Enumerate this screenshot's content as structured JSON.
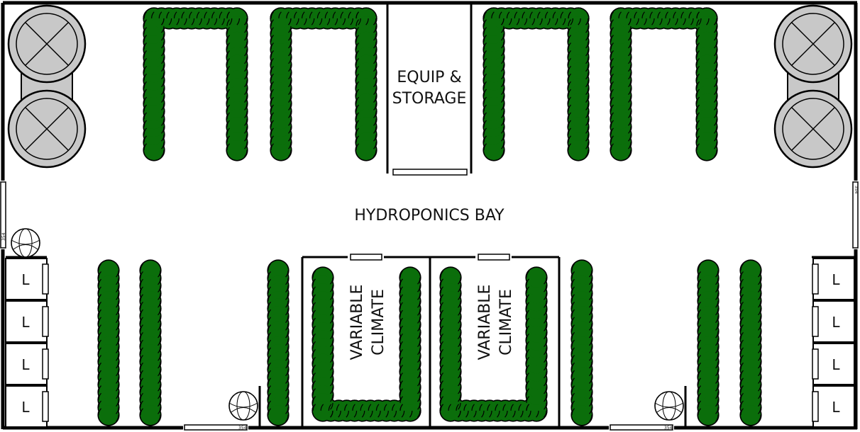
{
  "labels": {
    "bay": "HYDROPONICS BAY",
    "equip_line1": "EQUIP &",
    "equip_line2": "STORAGE",
    "climate_a_line1": "VARIABLE",
    "climate_a_line2": "CLIMATE",
    "climate_b_line1": "VARIABLE",
    "climate_b_line2": "CLIMATE",
    "door_code": "354",
    "locker": "L"
  },
  "colors": {
    "plant_fill": "#0b6e0b",
    "plant_outline": "#000000",
    "wall": "#000000",
    "tank_fill": "#c8c8c8",
    "background": "#ffffff"
  },
  "icons": [
    "fan-tank-icon",
    "plant-bed",
    "locker-icon",
    "globe-icon",
    "door-icon"
  ]
}
